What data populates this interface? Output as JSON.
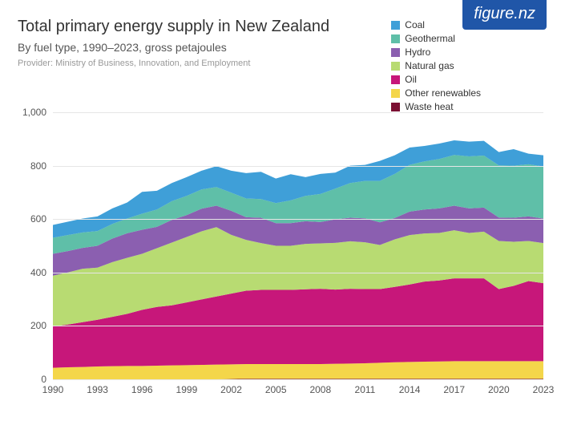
{
  "logo": {
    "text": "figure.nz",
    "bg": "#2056a8",
    "color": "#ffffff"
  },
  "header": {
    "title": "Total primary energy supply in New Zealand",
    "subtitle": "By fuel type, 1990–2023, gross petajoules",
    "provider": "Provider: Ministry of Business, Innovation, and Employment"
  },
  "chart": {
    "type": "stacked-area",
    "ylim": [
      0,
      1000
    ],
    "ytick_step": 200,
    "grid_color": "#e6e6e6",
    "background_color": "#ffffff",
    "text_color": "#555555",
    "title_color": "#333333",
    "title_fontsize": 20,
    "subtitle_fontsize": 14,
    "provider_fontsize": 11,
    "axis_fontsize": 12,
    "legend_fontsize": 12,
    "x_labels": [
      "1990",
      "1993",
      "1996",
      "1999",
      "2002",
      "2005",
      "2008",
      "2011",
      "2014",
      "2017",
      "2020",
      "2023"
    ],
    "years": [
      1990,
      1991,
      1992,
      1993,
      1994,
      1995,
      1996,
      1997,
      1998,
      1999,
      2000,
      2001,
      2002,
      2003,
      2004,
      2005,
      2006,
      2007,
      2008,
      2009,
      2010,
      2011,
      2012,
      2013,
      2014,
      2015,
      2016,
      2017,
      2018,
      2019,
      2020,
      2021,
      2022,
      2023
    ],
    "series": [
      {
        "name": "Waste heat",
        "color": "#7b1033",
        "values": [
          0,
          0,
          0,
          0,
          0,
          0,
          0,
          0,
          0,
          0,
          0,
          0,
          1,
          2,
          2,
          2,
          2,
          2,
          2,
          2,
          2,
          2,
          2,
          2,
          2,
          2,
          2,
          2,
          2,
          2,
          2,
          2,
          2,
          2
        ]
      },
      {
        "name": "Other renewables",
        "color": "#f4d64a",
        "values": [
          43,
          45,
          46,
          48,
          49,
          50,
          50,
          51,
          52,
          53,
          54,
          55,
          55,
          55,
          55,
          55,
          55,
          55,
          55,
          56,
          57,
          58,
          60,
          62,
          63,
          64,
          65,
          66,
          66,
          66,
          66,
          66,
          66,
          66
        ]
      },
      {
        "name": "Oil",
        "color": "#c7177a",
        "values": [
          155,
          160,
          168,
          175,
          185,
          195,
          210,
          220,
          225,
          235,
          245,
          255,
          265,
          275,
          278,
          278,
          278,
          280,
          282,
          278,
          280,
          278,
          276,
          282,
          290,
          300,
          303,
          310,
          310,
          310,
          270,
          282,
          300,
          292
        ]
      },
      {
        "name": "Natural gas",
        "color": "#b8db72",
        "values": [
          190,
          195,
          200,
          195,
          205,
          210,
          210,
          220,
          235,
          245,
          255,
          260,
          220,
          190,
          175,
          165,
          165,
          170,
          170,
          175,
          178,
          175,
          165,
          178,
          185,
          180,
          178,
          180,
          170,
          175,
          180,
          165,
          150,
          150
        ]
      },
      {
        "name": "Hydro",
        "color": "#8b5fb0",
        "values": [
          82,
          80,
          78,
          82,
          88,
          92,
          90,
          80,
          85,
          82,
          85,
          80,
          90,
          85,
          95,
          85,
          85,
          85,
          80,
          88,
          88,
          90,
          85,
          80,
          88,
          90,
          92,
          92,
          92,
          90,
          88,
          90,
          92,
          92
        ]
      },
      {
        "name": "Geothermal",
        "color": "#5fbfa8",
        "values": [
          60,
          60,
          58,
          55,
          55,
          55,
          60,
          65,
          70,
          72,
          72,
          70,
          68,
          70,
          70,
          75,
          85,
          95,
          105,
          115,
          130,
          140,
          155,
          165,
          175,
          180,
          185,
          190,
          195,
          195,
          195,
          195,
          195,
          195
        ]
      },
      {
        "name": "Coal",
        "color": "#3f9fd8",
        "values": [
          48,
          50,
          52,
          55,
          58,
          60,
          82,
          70,
          68,
          70,
          70,
          78,
          82,
          95,
          102,
          92,
          98,
          70,
          75,
          60,
          65,
          60,
          75,
          70,
          65,
          58,
          58,
          55,
          55,
          55,
          50,
          62,
          40,
          42
        ]
      }
    ]
  }
}
